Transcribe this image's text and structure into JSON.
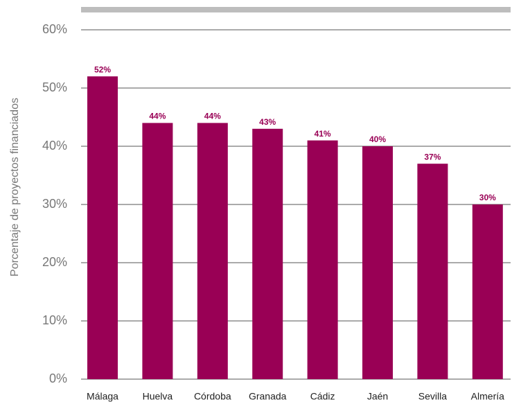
{
  "chart_data": {
    "type": "bar",
    "ylabel": "Porcentaje de proyectos financiados",
    "categories": [
      "Málaga",
      "Huelva",
      "Córdoba",
      "Granada",
      "Cádiz",
      "Jaén",
      "Sevilla",
      "Almería"
    ],
    "values": [
      52,
      44,
      44,
      43,
      41,
      40,
      37,
      30
    ],
    "value_labels": [
      "52%",
      "44%",
      "44%",
      "43%",
      "41%",
      "40%",
      "37%",
      "30%"
    ],
    "color": "#990055",
    "ylim": [
      0,
      60
    ],
    "yticks": [
      {
        "value": 0,
        "label": "0%"
      },
      {
        "value": 10,
        "label": "10%"
      },
      {
        "value": 20,
        "label": "20%"
      },
      {
        "value": 30,
        "label": "30%"
      },
      {
        "value": 40,
        "label": "40%"
      },
      {
        "value": 50,
        "label": "50%"
      },
      {
        "value": 60,
        "label": "60%"
      }
    ],
    "grid": true
  }
}
